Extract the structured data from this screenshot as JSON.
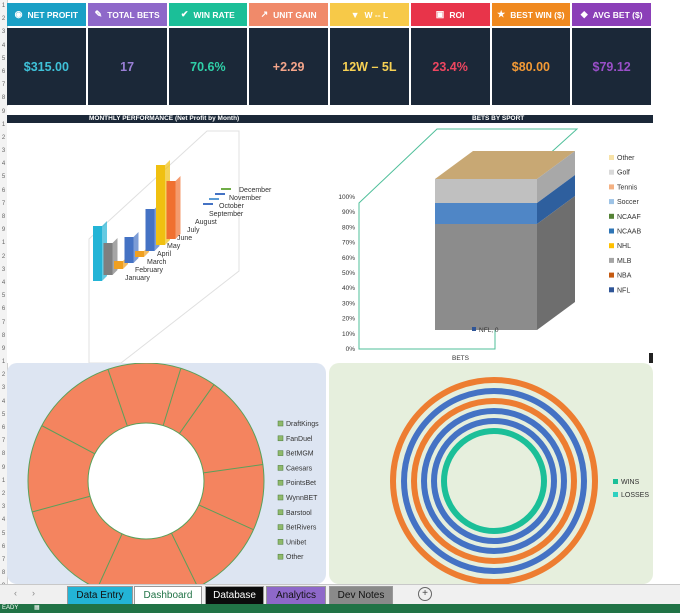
{
  "kpis": [
    {
      "label": "NET PROFIT",
      "value": "$315.00",
      "color": "#1aa0c6",
      "value_color": "#3fc1d8",
      "icon": "money-bag-icon",
      "glyph": "◉"
    },
    {
      "label": "TOTAL BETS",
      "value": "17",
      "color": "#8e68c9",
      "value_color": "#9a7fd6",
      "icon": "edit-icon",
      "glyph": "✎"
    },
    {
      "label": "WIN RATE",
      "value": "70.6%",
      "color": "#1bbf98",
      "value_color": "#2fd0a8",
      "icon": "check-icon",
      "glyph": "✔"
    },
    {
      "label": "UNIT GAIN",
      "value": "+2.29",
      "color": "#f08a6a",
      "value_color": "#f4a58a",
      "icon": "chart-line-icon",
      "glyph": "↗"
    },
    {
      "label": "W -- L",
      "value": "12W – 5L",
      "color": "#f7c948",
      "value_color": "#f7d154",
      "icon": "trophy-icon",
      "glyph": "▼"
    },
    {
      "label": "ROI",
      "value": "23.4%",
      "color": "#e8344a",
      "value_color": "#ee4660",
      "icon": "roi-icon",
      "glyph": "▣"
    },
    {
      "label": "BEST WIN ($)",
      "value": "$80.00",
      "color": "#f0891f",
      "value_color": "#f39a35",
      "icon": "star-icon",
      "glyph": "★"
    },
    {
      "label": "AVG BET ($)",
      "value": "$79.12",
      "color": "#8b3fb8",
      "value_color": "#9a4fc8",
      "icon": "bag-icon",
      "glyph": "◆"
    }
  ],
  "sections": {
    "monthly": "MONTHLY PERFORMANCE (Net Profit by Month)",
    "sport": "BETS BY SPORT"
  },
  "monthly_chart": {
    "type": "bar",
    "categories": [
      "January",
      "February",
      "March",
      "April",
      "May",
      "June",
      "July",
      "August",
      "September",
      "October",
      "November",
      "December"
    ],
    "colors": [
      "#23b4d6",
      "#7f7f7f",
      "#f0a020",
      "#4472c4",
      "#f0a020",
      "#4472c4",
      "#f0c010",
      "#f07030",
      "#4472c4",
      "#5b9bd5",
      "#4472c4",
      "#70ad47"
    ]
  },
  "sport_chart": {
    "type": "bar",
    "y_ticks": [
      "0%",
      "10%",
      "20%",
      "30%",
      "40%",
      "50%",
      "60%",
      "70%",
      "80%",
      "90%",
      "100%"
    ],
    "x_label": "BETS",
    "data_label": "NFL, 0",
    "legend": [
      {
        "name": "Other",
        "color": "#f7e2a8"
      },
      {
        "name": "Golf",
        "color": "#d9d9d9"
      },
      {
        "name": "Tennis",
        "color": "#f4b183"
      },
      {
        "name": "Soccer",
        "color": "#9dc3e6"
      },
      {
        "name": "NCAAF",
        "color": "#548235"
      },
      {
        "name": "NCAAB",
        "color": "#2e75b6"
      },
      {
        "name": "NHL",
        "color": "#ffc000"
      },
      {
        "name": "MLB",
        "color": "#a5a5a5"
      },
      {
        "name": "NBA",
        "color": "#c55a11"
      },
      {
        "name": "NFL",
        "color": "#2f5597"
      }
    ]
  },
  "books_chart": {
    "type": "pie",
    "legend": [
      "DraftKings",
      "FanDuel",
      "BetMGM",
      "Caesars",
      "PointsBet",
      "WynnBET",
      "Barstool",
      "BetRivers",
      "Unibet",
      "Other"
    ]
  },
  "winloss_chart": {
    "type": "pie",
    "legend": [
      {
        "name": "WINS",
        "color": "#1bbf98"
      },
      {
        "name": "LOSSES",
        "color": "#2fd0c0"
      }
    ]
  },
  "tabs": [
    {
      "label": "Data Entry",
      "bg": "#23b4d6",
      "fg": "#111111",
      "active": false
    },
    {
      "label": "Dashboard",
      "bg": "#ffffff",
      "fg": "#217346",
      "active": true
    },
    {
      "label": "Database",
      "bg": "#0b0b0b",
      "fg": "#ffffff",
      "active": false
    },
    {
      "label": "Analytics",
      "bg": "#8e68c9",
      "fg": "#111111",
      "active": false
    },
    {
      "label": "Dev Notes",
      "bg": "#8a8a8a",
      "fg": "#111111",
      "active": false
    }
  ],
  "status": "EADY"
}
